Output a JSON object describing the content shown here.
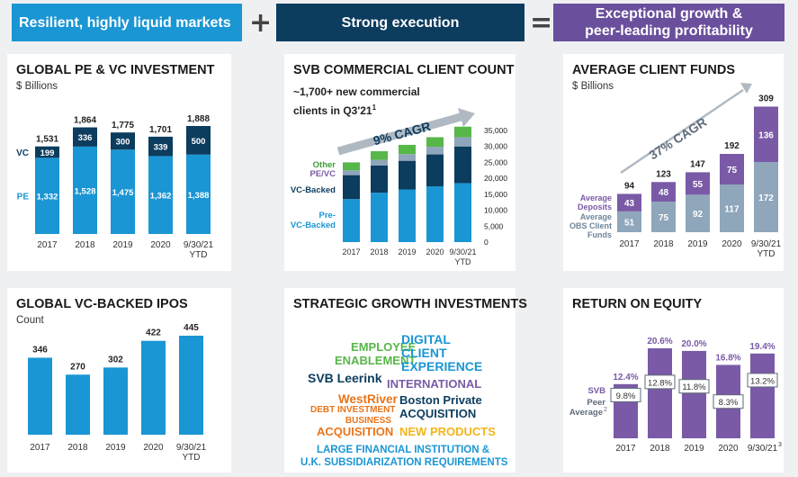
{
  "headers": {
    "left": "Resilient, highly liquid markets",
    "plus": "+",
    "middle": "Strong execution",
    "equals": "=",
    "right_line1": "Exceptional growth &",
    "right_line2": "peer-leading profitability"
  },
  "colors": {
    "header_blue": "#1a96d4",
    "header_navy": "#0c3c5e",
    "header_purple": "#6a4f9c",
    "bar_blue": "#1a96d4",
    "navy": "#0c3c5e",
    "purple": "#7a5aa6",
    "gray": "#8fa6bb",
    "green": "#57b749",
    "light_purple": "#9b85c2"
  },
  "pe_vc": {
    "title": "GLOBAL PE & VC INVESTMENT",
    "subtitle": "$ Billions",
    "series_labels": {
      "vc": "VC",
      "pe": "PE"
    },
    "chart_data": {
      "type": "bar",
      "stacked": true,
      "categories": [
        "2017",
        "2018",
        "2019",
        "2020",
        "9/30/21\nYTD"
      ],
      "series": [
        {
          "name": "PE",
          "values": [
            1332,
            1528,
            1475,
            1362,
            1388
          ]
        },
        {
          "name": "VC",
          "values": [
            199,
            336,
            300,
            339,
            500
          ]
        }
      ],
      "totals": [
        1531,
        1864,
        1775,
        1701,
        1888
      ]
    }
  },
  "ipos": {
    "title": "GLOBAL VC-BACKED IPOS",
    "subtitle": "Count",
    "chart_data": {
      "type": "bar",
      "categories": [
        "2017",
        "2018",
        "2019",
        "2020",
        "9/30/21\nYTD"
      ],
      "values": [
        346,
        270,
        302,
        422,
        445
      ]
    }
  },
  "svb_clients": {
    "title": "SVB COMMERCIAL CLIENT COUNT",
    "note_line1": "~1,700+ new commercial",
    "note_line2": "clients in Q3'21",
    "note_sup": "1",
    "cagr": "9% CAGR",
    "legend": {
      "other": "Other",
      "pe_vc": "PE/VC",
      "vc_backed": "VC-Backed",
      "pre_vc_line1": "Pre-",
      "pre_vc_line2": "VC-Backed"
    },
    "chart_data": {
      "type": "bar",
      "stacked": true,
      "categories": [
        "2017",
        "2018",
        "2019",
        "2020",
        "9/30/21\nYTD"
      ],
      "series": [
        {
          "name": "Pre-VC-Backed",
          "values": [
            13500,
            15500,
            16500,
            17500,
            18500
          ]
        },
        {
          "name": "VC-Backed",
          "values": [
            7500,
            8500,
            9000,
            10000,
            11500
          ]
        },
        {
          "name": "PE/VC",
          "values": [
            1500,
            1800,
            2100,
            2400,
            2900
          ]
        },
        {
          "name": "Other",
          "values": [
            2500,
            2700,
            2900,
            3000,
            3300
          ]
        }
      ],
      "yticks": [
        "35,000",
        "30,000",
        "25,000",
        "20,000",
        "15,000",
        "10,000",
        "5,000",
        "0"
      ],
      "ylim": [
        0,
        35000
      ]
    }
  },
  "strategic": {
    "title": "STRATEGIC GROWTH INVESTMENTS",
    "items": {
      "employee1": "EMPLOYEE",
      "employee2": "ENABLEMENT",
      "digital1": "DIGITAL",
      "digital2": "CLIENT",
      "digital3": "EXPERIENCE",
      "leerink": "SVB Leerink",
      "international": "INTERNATIONAL",
      "westriver": "WestRiver",
      "debt1": "DEBT INVESTMENT",
      "debt2": "BUSINESS",
      "boston1": "Boston Private",
      "boston2": "ACQUISITION",
      "acquisition": "ACQUISITION",
      "new_products": "NEW PRODUCTS",
      "large1": "LARGE FINANCIAL INSTITUTION &",
      "large2": "U.K. SUBSIDIARIZATION REQUIREMENTS"
    }
  },
  "client_funds": {
    "title": "AVERAGE CLIENT FUNDS",
    "subtitle": "$ Billions",
    "cagr": "37% CAGR",
    "legend": {
      "dep1": "Average",
      "dep2": "Deposits",
      "obs1": "Average",
      "obs2": "OBS Client",
      "obs3": "Funds"
    },
    "chart_data": {
      "type": "bar",
      "stacked": true,
      "categories": [
        "2017",
        "2018",
        "2019",
        "2020",
        "9/30/21\nYTD"
      ],
      "series": [
        {
          "name": "Average OBS Client Funds",
          "values": [
            51,
            75,
            92,
            117,
            172
          ]
        },
        {
          "name": "Average Deposits",
          "values": [
            43,
            48,
            55,
            75,
            136
          ]
        }
      ],
      "totals": [
        94,
        123,
        147,
        192,
        309
      ]
    }
  },
  "roe": {
    "title": "RETURN ON EQUITY",
    "legend": {
      "svb": "SVB",
      "peer1": "Peer",
      "peer2": "Average",
      "peer_sup": "2"
    },
    "chart_data": {
      "type": "bar",
      "categories": [
        "2017",
        "2018",
        "2019",
        "2020",
        "9/30/21"
      ],
      "last_sup": "3",
      "series": [
        {
          "name": "SVB",
          "values": [
            12.4,
            20.6,
            20.0,
            16.8,
            19.4
          ],
          "labels": [
            "12.4%",
            "20.6%",
            "20.0%",
            "16.8%",
            "19.4%"
          ]
        },
        {
          "name": "Peer Average",
          "values": [
            9.8,
            12.8,
            11.8,
            8.3,
            13.2
          ],
          "labels": [
            "9.8%",
            "12.8%",
            "11.8%",
            "8.3%",
            "13.2%"
          ]
        }
      ]
    }
  }
}
